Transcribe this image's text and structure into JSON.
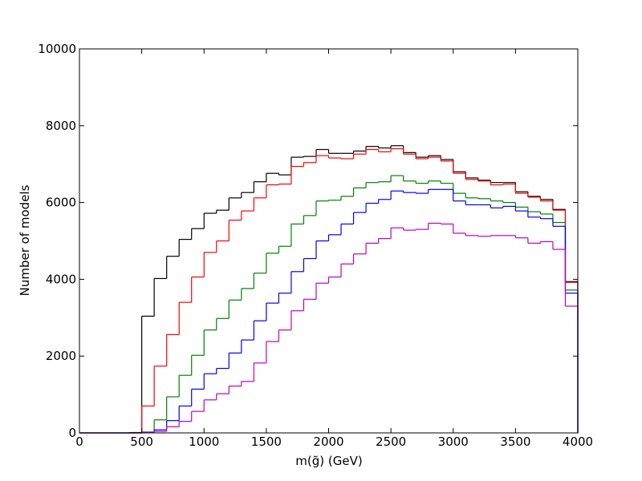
{
  "chart_data": {
    "type": "histogram",
    "xlabel": "m(g̃) (GeV)",
    "ylabel": "Number of models",
    "bins": [
      0,
      100,
      200,
      300,
      400,
      500,
      600,
      700,
      800,
      900,
      1000,
      1100,
      1200,
      1300,
      1400,
      1500,
      1600,
      1700,
      1800,
      1900,
      2000,
      2100,
      2200,
      2300,
      2400,
      2500,
      2600,
      2700,
      2800,
      2900,
      3000,
      3100,
      3200,
      3300,
      3400,
      3500,
      3600,
      3700,
      3800,
      3900,
      4000
    ],
    "series": [
      {
        "color": "#000000",
        "values": [
          0,
          0,
          0,
          0,
          10,
          3040,
          4020,
          4600,
          5040,
          5320,
          5720,
          5800,
          6120,
          6260,
          6540,
          6760,
          6720,
          7180,
          7200,
          7380,
          7280,
          7280,
          7340,
          7460,
          7420,
          7480,
          7300,
          7180,
          7220,
          7120,
          6800,
          6640,
          6580,
          6520,
          6520,
          6280,
          6160,
          6080,
          5820,
          3940
        ]
      },
      {
        "color": "#ff0000",
        "values": [
          0,
          0,
          0,
          0,
          0,
          700,
          1740,
          2560,
          3400,
          4060,
          4700,
          5000,
          5540,
          5780,
          6120,
          6460,
          6480,
          6940,
          7040,
          7220,
          7160,
          7140,
          7260,
          7380,
          7320,
          7400,
          7260,
          7140,
          7180,
          7080,
          6760,
          6600,
          6560,
          6460,
          6480,
          6240,
          6140,
          6040,
          5800,
          3920
        ]
      },
      {
        "color": "#008000",
        "values": [
          0,
          0,
          0,
          0,
          0,
          20,
          340,
          940,
          1500,
          2020,
          2680,
          2980,
          3460,
          3760,
          4160,
          4680,
          4860,
          5440,
          5660,
          6040,
          6060,
          6160,
          6380,
          6520,
          6540,
          6700,
          6560,
          6500,
          6560,
          6500,
          6240,
          6120,
          6100,
          6040,
          6000,
          5880,
          5760,
          5700,
          5480,
          3720
        ]
      },
      {
        "color": "#0000ff",
        "values": [
          0,
          0,
          0,
          0,
          0,
          20,
          80,
          320,
          700,
          1140,
          1540,
          1680,
          2080,
          2420,
          2920,
          3380,
          3640,
          4200,
          4540,
          5000,
          5160,
          5440,
          5740,
          5980,
          6080,
          6300,
          6260,
          6240,
          6340,
          6340,
          6040,
          5940,
          5940,
          5860,
          5900,
          5780,
          5620,
          5580,
          5380,
          3640
        ]
      },
      {
        "color": "#bf00bf",
        "values": [
          0,
          0,
          0,
          0,
          0,
          10,
          40,
          160,
          300,
          560,
          860,
          1020,
          1220,
          1340,
          1820,
          2380,
          2680,
          3180,
          3480,
          3900,
          4060,
          4400,
          4660,
          4940,
          5060,
          5340,
          5280,
          5300,
          5460,
          5440,
          5200,
          5140,
          5120,
          5140,
          5140,
          5080,
          4940,
          4980,
          4780,
          3300
        ]
      }
    ],
    "xlim": [
      0,
      4000
    ],
    "xticks": [
      0,
      500,
      1000,
      1500,
      2000,
      2500,
      3000,
      3500,
      4000
    ],
    "ylim": [
      0,
      10000
    ],
    "yticks": [
      0,
      2000,
      4000,
      6000,
      8000,
      10000
    ]
  }
}
